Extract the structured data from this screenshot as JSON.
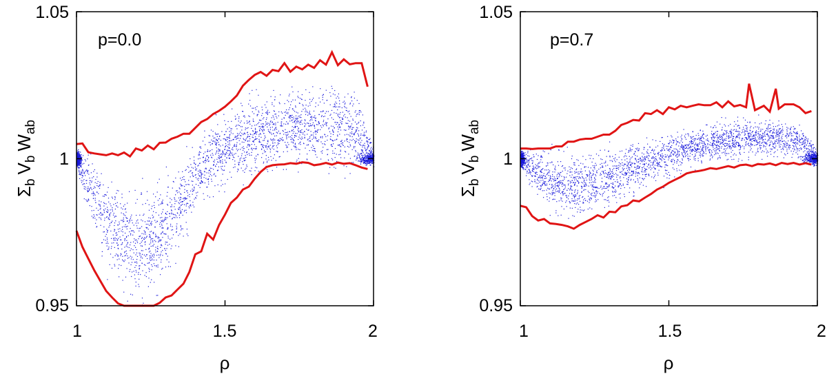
{
  "figure": {
    "panel_count": 2
  },
  "colors": {
    "envelope": "#e01414",
    "scatter": "#1a1adb",
    "axis": "#000000"
  },
  "chart_data": [
    {
      "type": "scatter",
      "annotation": "p=0.0",
      "xlabel": "ρ",
      "ylabel_main": "Σ",
      "ylabel_sub1": "b",
      "ylabel_v": "V",
      "ylabel_sub2": "b",
      "ylabel_w": "W",
      "ylabel_sub3": "ab",
      "xlim": [
        1,
        2
      ],
      "ylim": [
        0.95,
        1.05
      ],
      "xticks": [
        1,
        1.5,
        2
      ],
      "xtick_labels": [
        "1",
        "1.5",
        "2"
      ],
      "yticks": [
        0.95,
        1,
        1.05
      ],
      "ytick_labels": [
        "0.95",
        "1",
        "1.05"
      ],
      "series": [
        {
          "name": "upper envelope",
          "x": [
            1.0,
            1.02,
            1.04,
            1.06,
            1.08,
            1.1,
            1.12,
            1.14,
            1.16,
            1.18,
            1.2,
            1.22,
            1.24,
            1.26,
            1.28,
            1.3,
            1.32,
            1.34,
            1.36,
            1.38,
            1.4,
            1.42,
            1.44,
            1.46,
            1.48,
            1.5,
            1.52,
            1.54,
            1.56,
            1.58,
            1.6,
            1.62,
            1.64,
            1.66,
            1.68,
            1.7,
            1.72,
            1.74,
            1.76,
            1.78,
            1.8,
            1.82,
            1.84,
            1.86,
            1.88,
            1.9,
            1.92,
            1.94,
            1.96,
            1.98
          ],
          "y": [
            1.005,
            1.0052,
            1.0022,
            1.0018,
            1.0015,
            1.0012,
            1.0018,
            1.0012,
            1.0021,
            1.0008,
            1.0035,
            1.0028,
            1.0045,
            1.0032,
            1.0054,
            1.0055,
            1.0068,
            1.0075,
            1.0085,
            1.0085,
            1.0105,
            1.0125,
            1.0135,
            1.0152,
            1.0163,
            1.0177,
            1.0195,
            1.0215,
            1.0248,
            1.0268,
            1.0285,
            1.0295,
            1.0282,
            1.0302,
            1.0298,
            1.0325,
            1.0296,
            1.0313,
            1.0304,
            1.032,
            1.0309,
            1.0335,
            1.032,
            1.0362,
            1.0318,
            1.0338,
            1.0321,
            1.0325,
            1.0325,
            1.0245
          ]
        },
        {
          "name": "lower envelope",
          "x": [
            1.0,
            1.02,
            1.04,
            1.06,
            1.08,
            1.1,
            1.12,
            1.14,
            1.16,
            1.18,
            1.2,
            1.22,
            1.24,
            1.26,
            1.28,
            1.3,
            1.32,
            1.34,
            1.36,
            1.38,
            1.4,
            1.42,
            1.44,
            1.46,
            1.48,
            1.5,
            1.52,
            1.54,
            1.56,
            1.58,
            1.6,
            1.62,
            1.64,
            1.66,
            1.68,
            1.7,
            1.72,
            1.74,
            1.76,
            1.78,
            1.8,
            1.82,
            1.84,
            1.86,
            1.88,
            1.9,
            1.92,
            1.94,
            1.96,
            1.98
          ],
          "y": [
            0.9755,
            0.97,
            0.966,
            0.962,
            0.9585,
            0.955,
            0.9528,
            0.9508,
            0.9496,
            0.9484,
            0.948,
            0.9475,
            0.948,
            0.9492,
            0.951,
            0.9528,
            0.9535,
            0.9555,
            0.9575,
            0.9615,
            0.9675,
            0.9685,
            0.9745,
            0.9725,
            0.9775,
            0.981,
            0.985,
            0.9868,
            0.9895,
            0.9905,
            0.9932,
            0.9955,
            0.9972,
            0.9978,
            0.998,
            0.9981,
            0.9985,
            0.9983,
            0.9988,
            0.9986,
            0.9978,
            0.9981,
            0.9986,
            0.998,
            0.9987,
            0.9983,
            0.9985,
            0.9978,
            0.997,
            0.9965
          ]
        }
      ],
      "scatter": {
        "center": [
          1.0,
          0.9888,
          0.979,
          0.9735,
          0.971,
          0.972,
          0.977,
          0.9855,
          0.994,
          1.0002,
          1.003,
          1.0052,
          1.008,
          1.0095,
          1.0115,
          1.0113,
          1.011,
          1.011,
          1.0105,
          1.0098,
          1.0
        ],
        "halfwidth": [
          0.004,
          0.014,
          0.018,
          0.02,
          0.021,
          0.021,
          0.019,
          0.016,
          0.013,
          0.0135,
          0.0145,
          0.015,
          0.015,
          0.015,
          0.0155,
          0.016,
          0.0165,
          0.0165,
          0.016,
          0.014,
          0.004
        ]
      }
    },
    {
      "type": "scatter",
      "annotation": "p=0.7",
      "xlabel": "ρ",
      "ylabel_main": "Σ",
      "ylabel_sub1": "b",
      "ylabel_v": "V",
      "ylabel_sub2": "b",
      "ylabel_w": "W",
      "ylabel_sub3": "ab",
      "xlim": [
        1,
        2
      ],
      "ylim": [
        0.95,
        1.05
      ],
      "xticks": [
        1,
        1.5,
        2
      ],
      "xtick_labels": [
        "1",
        "1.5",
        "2"
      ],
      "yticks": [
        0.95,
        1,
        1.05
      ],
      "ytick_labels": [
        "0.95",
        "1",
        "1.05"
      ],
      "series": [
        {
          "name": "upper envelope",
          "x": [
            1.0,
            1.02,
            1.04,
            1.06,
            1.08,
            1.1,
            1.12,
            1.14,
            1.16,
            1.18,
            1.2,
            1.22,
            1.24,
            1.26,
            1.28,
            1.3,
            1.32,
            1.34,
            1.36,
            1.38,
            1.4,
            1.42,
            1.44,
            1.46,
            1.48,
            1.5,
            1.52,
            1.54,
            1.56,
            1.58,
            1.6,
            1.62,
            1.64,
            1.66,
            1.68,
            1.7,
            1.72,
            1.74,
            1.76,
            1.77,
            1.79,
            1.82,
            1.84,
            1.86,
            1.87,
            1.89,
            1.92,
            1.94,
            1.96,
            1.98
          ],
          "y": [
            1.0035,
            1.0035,
            1.0033,
            1.0035,
            1.0035,
            1.0035,
            1.0042,
            1.0042,
            1.0058,
            1.0058,
            1.0065,
            1.0068,
            1.0068,
            1.0075,
            1.0082,
            1.0082,
            1.0095,
            1.0115,
            1.0122,
            1.0132,
            1.013,
            1.0155,
            1.0152,
            1.0165,
            1.0152,
            1.0175,
            1.0168,
            1.018,
            1.0175,
            1.018,
            1.0185,
            1.0182,
            1.0182,
            1.0192,
            1.0175,
            1.0195,
            1.0178,
            1.0183,
            1.0175,
            1.0255,
            1.0165,
            1.018,
            1.016,
            1.0238,
            1.017,
            1.0185,
            1.0185,
            1.0175,
            1.0155,
            1.0162
          ]
        },
        {
          "name": "lower envelope",
          "x": [
            1.0,
            1.02,
            1.04,
            1.06,
            1.08,
            1.1,
            1.12,
            1.14,
            1.16,
            1.18,
            1.2,
            1.22,
            1.24,
            1.26,
            1.28,
            1.3,
            1.32,
            1.34,
            1.36,
            1.38,
            1.4,
            1.42,
            1.44,
            1.46,
            1.48,
            1.5,
            1.52,
            1.54,
            1.56,
            1.58,
            1.6,
            1.62,
            1.64,
            1.66,
            1.68,
            1.7,
            1.72,
            1.74,
            1.76,
            1.78,
            1.8,
            1.82,
            1.84,
            1.86,
            1.88,
            1.9,
            1.92,
            1.94,
            1.96,
            1.98
          ],
          "y": [
            0.984,
            0.9835,
            0.9805,
            0.979,
            0.9795,
            0.978,
            0.9778,
            0.9775,
            0.977,
            0.9762,
            0.9775,
            0.9785,
            0.9795,
            0.9808,
            0.98,
            0.982,
            0.9818,
            0.9838,
            0.9842,
            0.9858,
            0.9855,
            0.9868,
            0.988,
            0.9895,
            0.9905,
            0.9918,
            0.9928,
            0.9938,
            0.995,
            0.9955,
            0.9958,
            0.9962,
            0.9968,
            0.9965,
            0.997,
            0.9975,
            0.997,
            0.9978,
            0.998,
            0.9975,
            0.9982,
            0.998,
            0.9984,
            0.9978,
            0.9986,
            0.9982,
            0.9986,
            0.998,
            0.9985,
            0.998
          ]
        }
      ],
      "scatter": {
        "center": [
          1.0,
          0.9955,
          0.993,
          0.9915,
          0.991,
          0.9915,
          0.9935,
          0.9958,
          0.9978,
          0.9995,
          1.0015,
          1.003,
          1.0045,
          1.0055,
          1.0062,
          1.0068,
          1.007,
          1.0072,
          1.0068,
          1.006,
          1.0
        ],
        "halfwidth": [
          0.003,
          0.009,
          0.011,
          0.012,
          0.012,
          0.012,
          0.0115,
          0.0105,
          0.0095,
          0.009,
          0.0085,
          0.008,
          0.0078,
          0.0078,
          0.0075,
          0.0075,
          0.0075,
          0.0075,
          0.007,
          0.0065,
          0.003
        ]
      }
    }
  ]
}
